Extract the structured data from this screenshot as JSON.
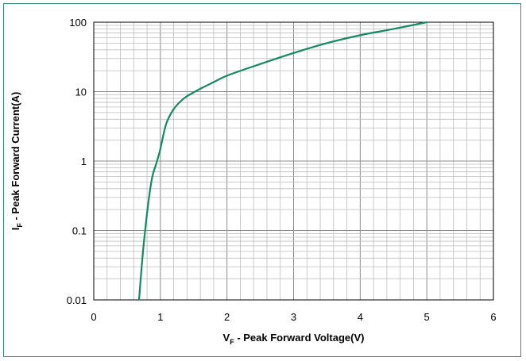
{
  "chart_data": {
    "type": "line",
    "title": "",
    "xlabel": {
      "main": "V",
      "sub": "F",
      "rest": " - Peak Forward Voltage(V)"
    },
    "ylabel": {
      "main": "I",
      "sub": "F",
      "rest": " - Peak Forward Current(A)"
    },
    "x_scale": "linear",
    "y_scale": "log",
    "xlim": [
      0,
      6
    ],
    "ylim": [
      0.01,
      100
    ],
    "x_ticks": [
      "0",
      "1",
      "2",
      "3",
      "4",
      "5",
      "6"
    ],
    "y_ticks": [
      "0.01",
      "0.1",
      "1",
      "10",
      "100"
    ],
    "grid": true,
    "legend": "none",
    "series": [
      {
        "color": "#138a63",
        "points": [
          [
            0.68,
            0.01
          ],
          [
            0.73,
            0.04
          ],
          [
            0.78,
            0.12
          ],
          [
            0.83,
            0.3
          ],
          [
            0.88,
            0.6
          ],
          [
            0.95,
            1.0
          ],
          [
            1.0,
            1.5
          ],
          [
            1.05,
            2.5
          ],
          [
            1.1,
            3.7
          ],
          [
            1.2,
            5.6
          ],
          [
            1.3,
            7.2
          ],
          [
            1.4,
            8.6
          ],
          [
            1.6,
            11
          ],
          [
            1.8,
            13.7
          ],
          [
            2.0,
            17
          ],
          [
            2.5,
            25
          ],
          [
            3.0,
            36
          ],
          [
            3.5,
            50
          ],
          [
            4.0,
            65
          ],
          [
            4.5,
            80
          ],
          [
            5.0,
            100
          ]
        ]
      }
    ]
  }
}
